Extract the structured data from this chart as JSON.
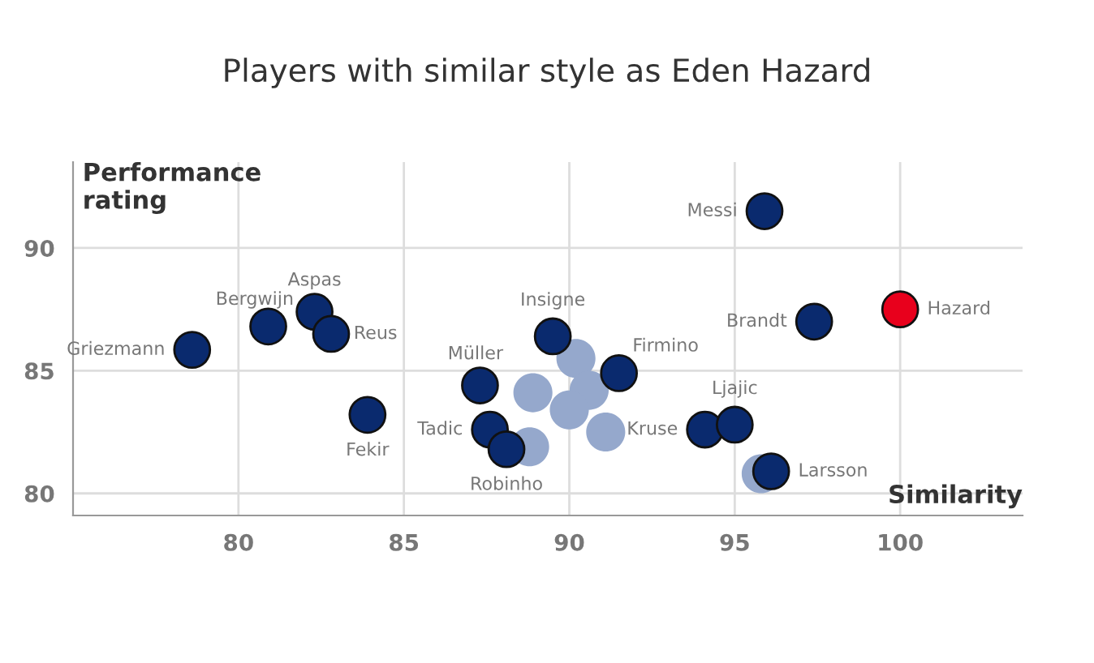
{
  "chart_data": {
    "type": "scatter",
    "title": "Players with similar style as Eden Hazard",
    "xlabel": "Similarity",
    "ylabel": "Performance\nrating",
    "xlim": [
      75,
      103.7
    ],
    "ylim": [
      79.1,
      93.5
    ],
    "xticks": [
      80,
      85,
      90,
      95,
      100
    ],
    "yticks": [
      80,
      85,
      90
    ],
    "grid": true,
    "marker": "circle",
    "legend": false,
    "series": [
      {
        "color": "#95a8cc",
        "x": [
          88.9,
          90.2,
          90.6,
          90.0,
          91.1,
          88.8,
          95.8
        ],
        "values": [
          84.1,
          85.5,
          84.2,
          83.4,
          82.5,
          81.9,
          80.8
        ]
      },
      {
        "color": "#0a2a6e",
        "x": [
          78.6,
          80.9,
          82.3,
          82.8,
          83.9,
          87.3,
          87.6,
          88.1,
          89.5,
          91.5,
          94.1,
          95.0,
          95.9,
          96.1,
          97.4
        ],
        "values": [
          85.85,
          86.8,
          87.4,
          86.5,
          83.2,
          84.4,
          82.6,
          81.8,
          86.4,
          84.9,
          82.6,
          82.8,
          91.5,
          80.9,
          87.0
        ]
      },
      {
        "color": "#e8001c",
        "x": [
          100
        ],
        "values": [
          87.5
        ]
      }
    ],
    "annotations": [
      {
        "text": "Griezmann",
        "x": 78.6,
        "y": 85.85
      },
      {
        "text": "Bergwijn",
        "x": 80.9,
        "y": 86.8
      },
      {
        "text": "Aspas",
        "x": 82.3,
        "y": 87.4
      },
      {
        "text": "Reus",
        "x": 82.8,
        "y": 86.5
      },
      {
        "text": "Fekir",
        "x": 83.9,
        "y": 83.2
      },
      {
        "text": "Müller",
        "x": 87.3,
        "y": 84.4
      },
      {
        "text": "Tadic",
        "x": 87.6,
        "y": 82.6
      },
      {
        "text": "Robinho",
        "x": 88.1,
        "y": 81.8
      },
      {
        "text": "Insigne",
        "x": 89.5,
        "y": 86.4
      },
      {
        "text": "Firmino",
        "x": 91.5,
        "y": 84.9
      },
      {
        "text": "Kruse",
        "x": 94.1,
        "y": 82.6
      },
      {
        "text": "Ljajic",
        "x": 95.0,
        "y": 82.8
      },
      {
        "text": "Messi",
        "x": 95.9,
        "y": 91.5
      },
      {
        "text": "Larsson",
        "x": 96.1,
        "y": 80.9
      },
      {
        "text": "Brandt",
        "x": 97.4,
        "y": 87.0
      },
      {
        "text": "Hazard",
        "x": 100,
        "y": 87.5
      }
    ]
  }
}
